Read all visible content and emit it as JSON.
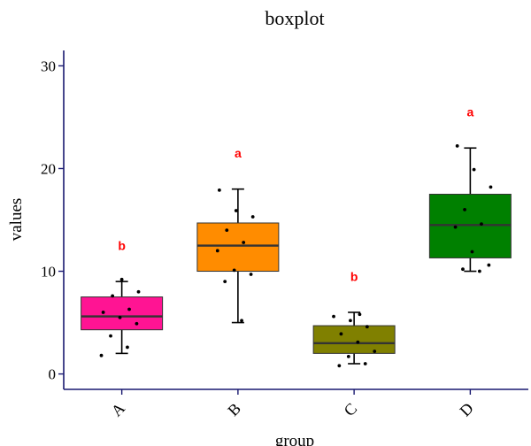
{
  "chart_data": {
    "type": "boxplot",
    "title": "boxplot",
    "xlabel": "group",
    "ylabel": "values",
    "ylim": [
      -1.5,
      31.5
    ],
    "yticks": [
      0,
      10,
      20,
      30
    ],
    "categories": [
      "A",
      "B",
      "C",
      "D"
    ],
    "boxes": [
      {
        "category": "A",
        "min": 2.0,
        "q1": 4.3,
        "median": 5.6,
        "q3": 7.5,
        "max": 9.0,
        "letter": "b",
        "color": "#FF1493",
        "points": [
          1.8,
          2.6,
          3.7,
          4.9,
          5.5,
          6.0,
          6.3,
          7.6,
          8.0,
          9.2
        ]
      },
      {
        "category": "B",
        "min": 5.0,
        "q1": 10.0,
        "median": 12.5,
        "q3": 14.7,
        "max": 18.0,
        "letter": "a",
        "color": "#FF8C00",
        "points": [
          5.2,
          9.0,
          9.7,
          10.1,
          12.0,
          12.8,
          14.0,
          15.3,
          15.9,
          17.9
        ]
      },
      {
        "category": "C",
        "min": 1.0,
        "q1": 2.0,
        "median": 3.0,
        "q3": 4.7,
        "max": 6.0,
        "letter": "b",
        "color": "#808000",
        "points": [
          0.8,
          1.0,
          1.7,
          2.2,
          3.1,
          3.9,
          4.6,
          5.2,
          5.6,
          5.8
        ]
      },
      {
        "category": "D",
        "min": 10.0,
        "q1": 11.3,
        "median": 14.5,
        "q3": 17.5,
        "max": 22.0,
        "letter": "a",
        "color": "#008000",
        "points": [
          10.0,
          10.2,
          10.6,
          11.9,
          14.3,
          14.6,
          16.0,
          18.2,
          19.9,
          22.2
        ]
      }
    ],
    "colors": {
      "axis": "#191970",
      "letter": "#FF0000",
      "point": "#000000"
    }
  }
}
